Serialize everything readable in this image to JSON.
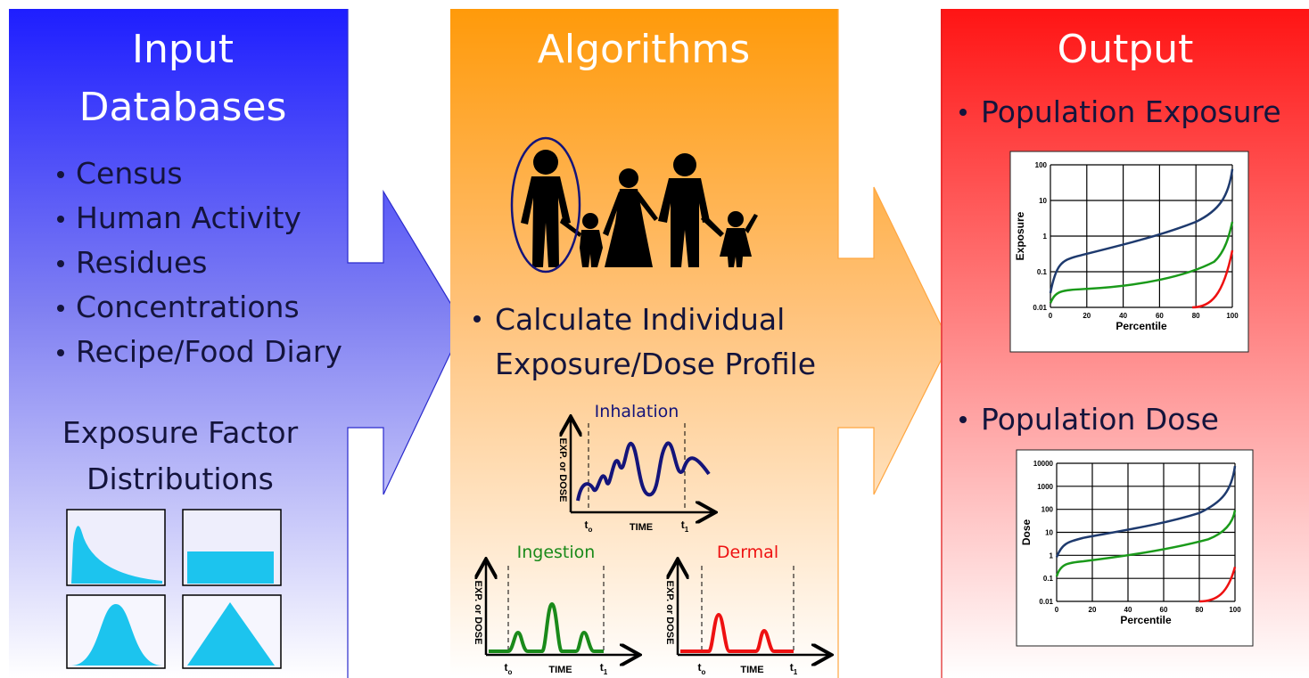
{
  "input": {
    "title": [
      "Input",
      "Databases"
    ],
    "bullets": [
      "Census",
      "Human Activity",
      "Residues",
      "Concentrations",
      "Recipe/Food Diary"
    ],
    "factor_title": [
      "Exposure Factor",
      "Distributions"
    ]
  },
  "algorithms": {
    "title": "Algorithms",
    "bullet": [
      "Calculate Individual",
      "Exposure/Dose Profile"
    ],
    "profiles": [
      {
        "label": "Inhalation",
        "y_axis": "EXP. or DOSE",
        "x_axis": "TIME",
        "t0": [
          "t",
          "o"
        ],
        "t1": [
          "t",
          "1"
        ]
      },
      {
        "label": "Ingestion",
        "y_axis": "EXP. or DOSE",
        "x_axis": "TIME",
        "t0": [
          "t",
          "o"
        ],
        "t1": [
          "t",
          "1"
        ]
      },
      {
        "label": "Dermal",
        "y_axis": "EXP. or DOSE",
        "x_axis": "TIME",
        "t0": [
          "t",
          "o"
        ],
        "t1": [
          "t",
          "1"
        ]
      }
    ]
  },
  "output": {
    "title": "Output",
    "charts": [
      {
        "title": "Population Exposure",
        "y_label": "Exposure",
        "x_label": "Percentile",
        "yticks": [
          "100",
          "10",
          "1",
          "0.1",
          "0.01"
        ],
        "xticks": [
          "0",
          "20",
          "40",
          "60",
          "80",
          "100"
        ]
      },
      {
        "title": "Population Dose",
        "y_label": "Dose",
        "x_label": "Percentile",
        "yticks": [
          "10000",
          "1000",
          "100",
          "10",
          "1",
          "0.1",
          "0.01"
        ],
        "xticks": [
          "0",
          "20",
          "40",
          "60",
          "80",
          "100"
        ]
      }
    ]
  }
}
